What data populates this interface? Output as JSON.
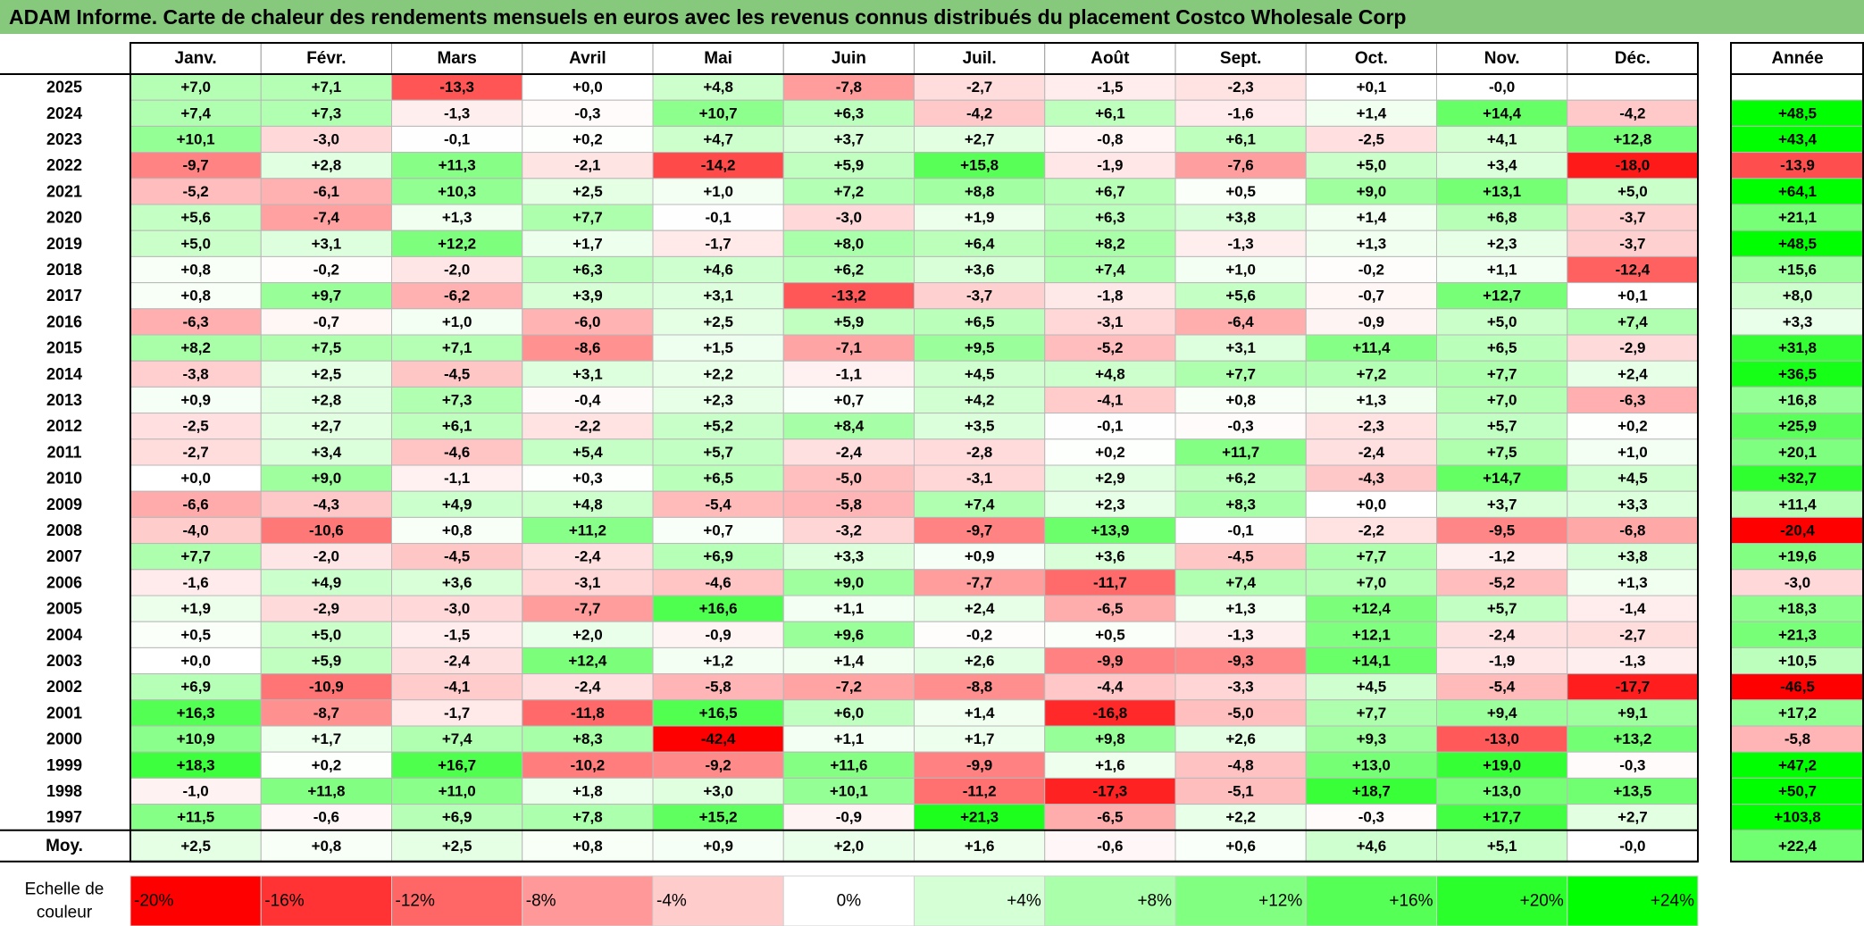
{
  "title": "ADAM Informe. Carte de chaleur des rendements mensuels en euros avec les revenus connus distribués du placement Costco Wholesale Corp",
  "chart_data": {
    "type": "heatmap",
    "months": [
      "Janv.",
      "Févr.",
      "Mars",
      "Avril",
      "Mai",
      "Juin",
      "Juil.",
      "Août",
      "Sept.",
      "Oct.",
      "Nov.",
      "Déc."
    ],
    "annual_header": "Année",
    "rows": [
      {
        "year": "2025",
        "months": [
          "+7,0",
          "+7,1",
          "-13,3",
          "+0,0",
          "+4,8",
          "-7,8",
          "-2,7",
          "-1,5",
          "-2,3",
          "+0,1",
          "-0,0",
          ""
        ],
        "annual": ""
      },
      {
        "year": "2024",
        "months": [
          "+7,4",
          "+7,3",
          "-1,3",
          "-0,3",
          "+10,7",
          "+6,3",
          "-4,2",
          "+6,1",
          "-1,6",
          "+1,4",
          "+14,4",
          "-4,2"
        ],
        "annual": "+48,5"
      },
      {
        "year": "2023",
        "months": [
          "+10,1",
          "-3,0",
          "-0,1",
          "+0,2",
          "+4,7",
          "+3,7",
          "+2,7",
          "-0,8",
          "+6,1",
          "-2,5",
          "+4,1",
          "+12,8"
        ],
        "annual": "+43,4"
      },
      {
        "year": "2022",
        "months": [
          "-9,7",
          "+2,8",
          "+11,3",
          "-2,1",
          "-14,2",
          "+5,9",
          "+15,8",
          "-1,9",
          "-7,6",
          "+5,0",
          "+3,4",
          "-18,0"
        ],
        "annual": "-13,9"
      },
      {
        "year": "2021",
        "months": [
          "-5,2",
          "-6,1",
          "+10,3",
          "+2,5",
          "+1,0",
          "+7,2",
          "+8,8",
          "+6,7",
          "+0,5",
          "+9,0",
          "+13,1",
          "+5,0"
        ],
        "annual": "+64,1"
      },
      {
        "year": "2020",
        "months": [
          "+5,6",
          "-7,4",
          "+1,3",
          "+7,7",
          "-0,1",
          "-3,0",
          "+1,9",
          "+6,3",
          "+3,8",
          "+1,4",
          "+6,8",
          "-3,7"
        ],
        "annual": "+21,1"
      },
      {
        "year": "2019",
        "months": [
          "+5,0",
          "+3,1",
          "+12,2",
          "+1,7",
          "-1,7",
          "+8,0",
          "+6,4",
          "+8,2",
          "-1,3",
          "+1,3",
          "+2,3",
          "-3,7"
        ],
        "annual": "+48,5"
      },
      {
        "year": "2018",
        "months": [
          "+0,8",
          "-0,2",
          "-2,0",
          "+6,3",
          "+4,6",
          "+6,2",
          "+3,6",
          "+7,4",
          "+1,0",
          "-0,2",
          "+1,1",
          "-12,4"
        ],
        "annual": "+15,6"
      },
      {
        "year": "2017",
        "months": [
          "+0,8",
          "+9,7",
          "-6,2",
          "+3,9",
          "+3,1",
          "-13,2",
          "-3,7",
          "-1,8",
          "+5,6",
          "-0,7",
          "+12,7",
          "+0,1"
        ],
        "annual": "+8,0"
      },
      {
        "year": "2016",
        "months": [
          "-6,3",
          "-0,7",
          "+1,0",
          "-6,0",
          "+2,5",
          "+5,9",
          "+6,5",
          "-3,1",
          "-6,4",
          "-0,9",
          "+5,0",
          "+7,4"
        ],
        "annual": "+3,3"
      },
      {
        "year": "2015",
        "months": [
          "+8,2",
          "+7,5",
          "+7,1",
          "-8,6",
          "+1,5",
          "-7,1",
          "+9,5",
          "-5,2",
          "+3,1",
          "+11,4",
          "+6,5",
          "-2,9"
        ],
        "annual": "+31,8"
      },
      {
        "year": "2014",
        "months": [
          "-3,8",
          "+2,5",
          "-4,5",
          "+3,1",
          "+2,2",
          "-1,1",
          "+4,5",
          "+4,8",
          "+7,7",
          "+7,2",
          "+7,7",
          "+2,4"
        ],
        "annual": "+36,5"
      },
      {
        "year": "2013",
        "months": [
          "+0,9",
          "+2,8",
          "+7,3",
          "-0,4",
          "+2,3",
          "+0,7",
          "+4,2",
          "-4,1",
          "+0,8",
          "+1,3",
          "+7,0",
          "-6,3"
        ],
        "annual": "+16,8"
      },
      {
        "year": "2012",
        "months": [
          "-2,5",
          "+2,7",
          "+6,1",
          "-2,2",
          "+5,2",
          "+8,4",
          "+3,5",
          "-0,1",
          "-0,3",
          "-2,3",
          "+5,7",
          "+0,2"
        ],
        "annual": "+25,9"
      },
      {
        "year": "2011",
        "months": [
          "-2,7",
          "+3,4",
          "-4,6",
          "+5,4",
          "+5,7",
          "-2,4",
          "-2,8",
          "+0,2",
          "+11,7",
          "-2,4",
          "+7,5",
          "+1,0"
        ],
        "annual": "+20,1"
      },
      {
        "year": "2010",
        "months": [
          "+0,0",
          "+9,0",
          "-1,1",
          "+0,3",
          "+6,5",
          "-5,0",
          "-3,1",
          "+2,9",
          "+6,2",
          "-4,3",
          "+14,7",
          "+4,5"
        ],
        "annual": "+32,7"
      },
      {
        "year": "2009",
        "months": [
          "-6,6",
          "-4,3",
          "+4,9",
          "+4,8",
          "-5,4",
          "-5,8",
          "+7,4",
          "+2,3",
          "+8,3",
          "+0,0",
          "+3,7",
          "+3,3"
        ],
        "annual": "+11,4"
      },
      {
        "year": "2008",
        "months": [
          "-4,0",
          "-10,6",
          "+0,8",
          "+11,2",
          "+0,7",
          "-3,2",
          "-9,7",
          "+13,9",
          "-0,1",
          "-2,2",
          "-9,5",
          "-6,8"
        ],
        "annual": "-20,4"
      },
      {
        "year": "2007",
        "months": [
          "+7,7",
          "-2,0",
          "-4,5",
          "-2,4",
          "+6,9",
          "+3,3",
          "+0,9",
          "+3,6",
          "-4,5",
          "+7,7",
          "-1,2",
          "+3,8"
        ],
        "annual": "+19,6"
      },
      {
        "year": "2006",
        "months": [
          "-1,6",
          "+4,9",
          "+3,6",
          "-3,1",
          "-4,6",
          "+9,0",
          "-7,7",
          "-11,7",
          "+7,4",
          "+7,0",
          "-5,2",
          "+1,3"
        ],
        "annual": "-3,0"
      },
      {
        "year": "2005",
        "months": [
          "+1,9",
          "-2,9",
          "-3,0",
          "-7,7",
          "+16,6",
          "+1,1",
          "+2,4",
          "-6,5",
          "+1,3",
          "+12,4",
          "+5,7",
          "-1,4"
        ],
        "annual": "+18,3"
      },
      {
        "year": "2004",
        "months": [
          "+0,5",
          "+5,0",
          "-1,5",
          "+2,0",
          "-0,9",
          "+9,6",
          "-0,2",
          "+0,5",
          "-1,3",
          "+12,1",
          "-2,4",
          "-2,7"
        ],
        "annual": "+21,3"
      },
      {
        "year": "2003",
        "months": [
          "+0,0",
          "+5,9",
          "-2,4",
          "+12,4",
          "+1,2",
          "+1,4",
          "+2,6",
          "-9,9",
          "-9,3",
          "+14,1",
          "-1,9",
          "-1,3"
        ],
        "annual": "+10,5"
      },
      {
        "year": "2002",
        "months": [
          "+6,9",
          "-10,9",
          "-4,1",
          "-2,4",
          "-5,8",
          "-7,2",
          "-8,8",
          "-4,4",
          "-3,3",
          "+4,5",
          "-5,4",
          "-17,7"
        ],
        "annual": "-46,5"
      },
      {
        "year": "2001",
        "months": [
          "+16,3",
          "-8,7",
          "-1,7",
          "-11,8",
          "+16,5",
          "+6,0",
          "+1,4",
          "-16,8",
          "-5,0",
          "+7,7",
          "+9,4",
          "+9,1"
        ],
        "annual": "+17,2"
      },
      {
        "year": "2000",
        "months": [
          "+10,9",
          "+1,7",
          "+7,4",
          "+8,3",
          "-42,4",
          "+1,1",
          "+1,7",
          "+9,8",
          "+2,6",
          "+9,3",
          "-13,0",
          "+13,2"
        ],
        "annual": "-5,8"
      },
      {
        "year": "1999",
        "months": [
          "+18,3",
          "+0,2",
          "+16,7",
          "-10,2",
          "-9,2",
          "+11,6",
          "-9,9",
          "+1,6",
          "-4,8",
          "+13,0",
          "+19,0",
          "-0,3"
        ],
        "annual": "+47,2"
      },
      {
        "year": "1998",
        "months": [
          "-1,0",
          "+11,8",
          "+11,0",
          "+1,8",
          "+3,0",
          "+10,1",
          "-11,2",
          "-17,3",
          "-5,1",
          "+18,7",
          "+13,0",
          "+13,5"
        ],
        "annual": "+50,7"
      },
      {
        "year": "1997",
        "months": [
          "+11,5",
          "-0,6",
          "+6,9",
          "+7,8",
          "+15,2",
          "-0,9",
          "+21,3",
          "-6,5",
          "+2,2",
          "-0,3",
          "+17,7",
          "+2,7"
        ],
        "annual": "+103,8"
      }
    ],
    "average": {
      "label": "Moy.",
      "months": [
        "+2,5",
        "+0,8",
        "+2,5",
        "+0,8",
        "+0,9",
        "+2,0",
        "+1,6",
        "-0,6",
        "+0,6",
        "+4,6",
        "+5,1",
        "-0,0"
      ],
      "annual": "+22,4"
    },
    "scale": {
      "label_line1": "Echelle de",
      "label_line2": "couleur",
      "steps": [
        {
          "label": "-20%",
          "value": -20
        },
        {
          "label": "-16%",
          "value": -16
        },
        {
          "label": "-12%",
          "value": -12
        },
        {
          "label": "-8%",
          "value": -8
        },
        {
          "label": "-4%",
          "value": -4
        },
        {
          "label": "0%",
          "value": 0
        },
        {
          "label": "+4%",
          "value": 4
        },
        {
          "label": "+8%",
          "value": 8
        },
        {
          "label": "+12%",
          "value": 12
        },
        {
          "label": "+16%",
          "value": 16
        },
        {
          "label": "+20%",
          "value": 20
        },
        {
          "label": "+24%",
          "value": 24
        }
      ]
    },
    "colors": {
      "negative_max": "#ff0000",
      "neutral": "#ffffff",
      "positive_max": "#00ff00",
      "title_bar": "#86c97c"
    },
    "monthly_color_range": [
      -20,
      24
    ],
    "annual_color_range": [
      -20,
      40
    ]
  }
}
